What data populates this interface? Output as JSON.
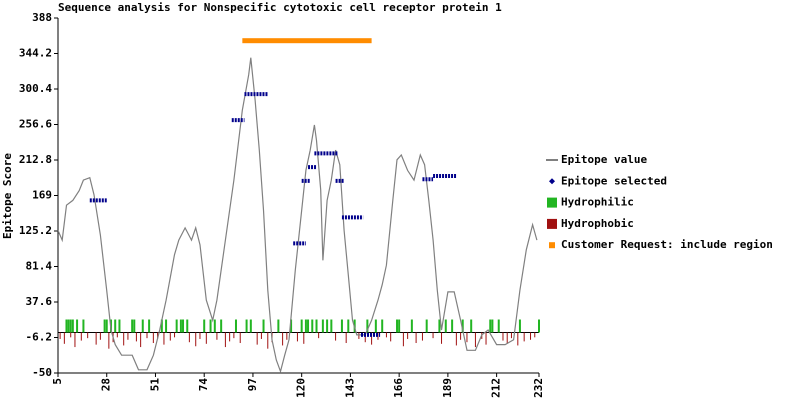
{
  "chart_data": {
    "type": "line",
    "title": "Sequence analysis for  Nonspecific cytotoxic cell receptor protein 1",
    "y_label": "Epitope Score",
    "xlim": [
      5,
      232
    ],
    "ylim": [
      -50,
      388
    ],
    "xticks": [
      5,
      28,
      51,
      74,
      97,
      120,
      143,
      166,
      189,
      212,
      232
    ],
    "yticks": [
      388,
      344.2,
      300.4,
      256.6,
      212.8,
      169,
      125.2,
      81.4,
      37.6,
      -6.2,
      -50
    ],
    "x": [
      5,
      7,
      9,
      12,
      15,
      17,
      20,
      22,
      25,
      28,
      30,
      32,
      35,
      40,
      43,
      47,
      50,
      53,
      56,
      60,
      62,
      65,
      68,
      70,
      72,
      75,
      78,
      80,
      84,
      88,
      92,
      95,
      96,
      98,
      100,
      102,
      104,
      106,
      108,
      110,
      112,
      114,
      117,
      120,
      122,
      124,
      126,
      127,
      129,
      130,
      132,
      134,
      136,
      138,
      140,
      142,
      144,
      146,
      148,
      150,
      153,
      156,
      158,
      160,
      163,
      165,
      167,
      170,
      173,
      176,
      178,
      180,
      182,
      184,
      186,
      189,
      192,
      195,
      198,
      202,
      205,
      208,
      212,
      216,
      220,
      223,
      226,
      229,
      231
    ],
    "series": [
      {
        "name": "Epitope value",
        "color": "#808080",
        "values": [
          126,
          114,
          157,
          163,
          175,
          188,
          191,
          170,
          120,
          52,
          3,
          -15,
          -28,
          -28,
          -46,
          -46,
          -28,
          3,
          40,
          96,
          114,
          129,
          114,
          129,
          108,
          40,
          15,
          40,
          114,
          188,
          274,
          318,
          339,
          287,
          225,
          151,
          52,
          -9,
          -34,
          -48,
          -28,
          -9,
          77,
          151,
          200,
          225,
          256,
          237,
          176,
          89,
          163,
          188,
          225,
          207,
          126,
          71,
          15,
          -3,
          -3,
          -3,
          15,
          40,
          59,
          83,
          163,
          213,
          219,
          200,
          188,
          219,
          207,
          163,
          114,
          52,
          3,
          50,
          50,
          15,
          -22,
          -22,
          -3,
          3,
          -15,
          -15,
          -9,
          52,
          102,
          133,
          114
        ]
      }
    ],
    "selected": {
      "name": "Epitope selected",
      "color": "#00008b",
      "segments": [
        {
          "start": 20,
          "end": 28,
          "value": 163
        },
        {
          "start": 87,
          "end": 93,
          "value": 262
        },
        {
          "start": 93,
          "end": 104,
          "value": 294
        },
        {
          "start": 116,
          "end": 122,
          "value": 110
        },
        {
          "start": 120,
          "end": 124,
          "value": 187
        },
        {
          "start": 123,
          "end": 127,
          "value": 204
        },
        {
          "start": 126,
          "end": 137,
          "value": 221
        },
        {
          "start": 136,
          "end": 140,
          "value": 187
        },
        {
          "start": 139,
          "end": 149,
          "value": 142
        },
        {
          "start": 148,
          "end": 157,
          "value": -3
        },
        {
          "start": 177,
          "end": 182,
          "value": 189
        },
        {
          "start": 182,
          "end": 193,
          "value": 193
        }
      ]
    },
    "hydrophilic": {
      "name": "Hydrophilic",
      "color": "#22b522",
      "x": [
        9,
        10,
        11,
        12,
        14,
        17,
        27,
        28,
        30,
        32,
        34,
        40,
        41,
        45,
        48,
        54,
        56,
        61,
        63,
        64,
        66,
        74,
        77,
        79,
        82,
        89,
        94,
        96,
        102,
        109,
        115,
        120,
        122,
        123,
        125,
        127,
        130,
        132,
        134,
        139,
        142,
        145,
        151,
        155,
        158,
        165,
        166,
        172,
        179,
        185,
        188,
        191,
        196,
        200,
        209,
        210,
        213,
        223,
        232
      ],
      "values": [
        16,
        16,
        16,
        16,
        16,
        16,
        16,
        16,
        16,
        16,
        16,
        16,
        16,
        16,
        16,
        16,
        16,
        16,
        16,
        16,
        16,
        16,
        16,
        16,
        16,
        16,
        16,
        16,
        16,
        16,
        16,
        16,
        16,
        16,
        16,
        16,
        16,
        16,
        16,
        16,
        16,
        16,
        16,
        16,
        16,
        16,
        16,
        16,
        16,
        16,
        16,
        16,
        16,
        16,
        16,
        16,
        16,
        16,
        16
      ]
    },
    "hydrophobic": {
      "name": "Hydrophobic",
      "color": "#a01010",
      "x": [
        6,
        8,
        11,
        13,
        16,
        19,
        23,
        25,
        29,
        31,
        33,
        36,
        38,
        42,
        44,
        47,
        50,
        52,
        55,
        58,
        60,
        67,
        70,
        72,
        75,
        80,
        84,
        86,
        88,
        91,
        99,
        101,
        104,
        106,
        111,
        113,
        118,
        121,
        128,
        136,
        141,
        147,
        150,
        153,
        156,
        160,
        162,
        168,
        170,
        174,
        177,
        182,
        186,
        193,
        195,
        198,
        202,
        205,
        207,
        215,
        217,
        219,
        222,
        225,
        228,
        230
      ],
      "values": [
        -8,
        -14,
        -6,
        -18,
        -10,
        -7,
        -15,
        -9,
        -20,
        -12,
        -6,
        -16,
        -9,
        -11,
        -18,
        -7,
        -13,
        -8,
        -15,
        -10,
        -6,
        -12,
        -17,
        -8,
        -14,
        -9,
        -18,
        -11,
        -7,
        -13,
        -15,
        -8,
        -20,
        -12,
        -16,
        -9,
        -11,
        -14,
        -7,
        -10,
        -13,
        -8,
        -12,
        -15,
        -9,
        -6,
        -11,
        -17,
        -8,
        -13,
        -10,
        -7,
        -14,
        -16,
        -9,
        -12,
        -18,
        -8,
        -15,
        -10,
        -13,
        -7,
        -16,
        -11,
        -9,
        -6
      ]
    },
    "region": {
      "name": "Customer Request: include region",
      "color": "#ff8c00",
      "start": 92,
      "end": 153,
      "value": 360
    }
  }
}
